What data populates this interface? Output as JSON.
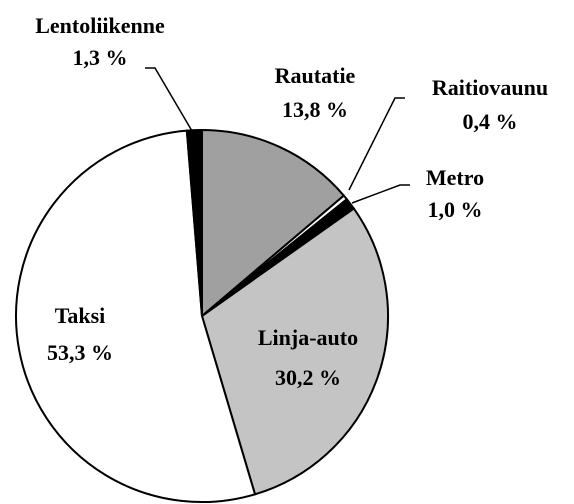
{
  "chart_data": {
    "type": "pie",
    "categories": [
      "Rautatie",
      "Raitiovaunu",
      "Metro",
      "Linja-auto",
      "Taksi",
      "Lentoliikenne"
    ],
    "values": [
      13.8,
      0.4,
      1.0,
      30.2,
      53.3,
      1.3
    ],
    "value_labels": [
      "13,8 %",
      "0,4 %",
      "1,0 %",
      "30,2 %",
      "53,3 %",
      "1,3 %"
    ],
    "colors": [
      "#a0a0a0",
      "#ffffff",
      "#000000",
      "#c4c4c4",
      "#ffffff",
      "#000000"
    ]
  }
}
